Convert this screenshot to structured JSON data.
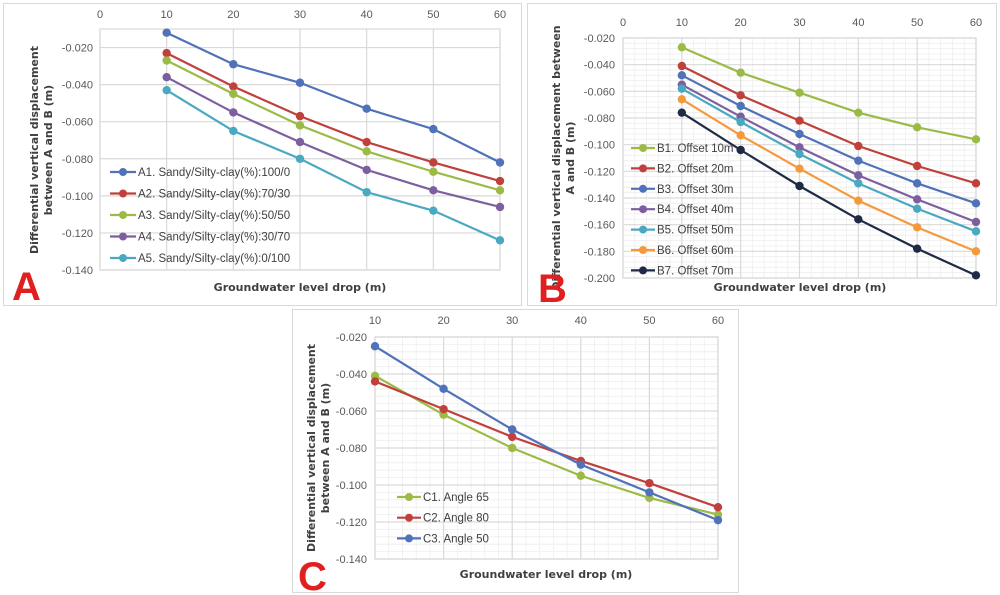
{
  "chart_data": [
    {
      "id": "A",
      "type": "line",
      "panel_label": "A",
      "xlabel": "Groundwater level drop (m)",
      "ylabel": "Differential vertical displacement between A and B (m)",
      "ylabel_lines": [
        "Differential vertical displacement",
        "between A and B (m)"
      ],
      "xlim": [
        0,
        60
      ],
      "ylim": [
        -0.14,
        -0.01
      ],
      "x_ticks": [
        0,
        10,
        20,
        30,
        40,
        50,
        60
      ],
      "x_tick_labels": [
        "0",
        "10",
        "20",
        "30",
        "40",
        "50",
        "60"
      ],
      "y_ticks": [
        -0.02,
        -0.04,
        -0.06,
        -0.08,
        -0.1,
        -0.12,
        -0.14
      ],
      "y_tick_labels": [
        "-0.020",
        "-0.040",
        "-0.060",
        "-0.080",
        "-0.100",
        "-0.120",
        "-0.140"
      ],
      "x_axis_position": "top",
      "grid": true,
      "minor_grid": false,
      "legend_position": "lower-left",
      "x": [
        10,
        20,
        30,
        40,
        50,
        60
      ],
      "series": [
        {
          "name": "A1. Sandy/Silty-clay(%):100/0",
          "color": "#4f72b8",
          "values": [
            -0.012,
            -0.029,
            -0.039,
            -0.053,
            -0.064,
            -0.082
          ]
        },
        {
          "name": "A2. Sandy/Silty-clay(%):70/30",
          "color": "#c0403c",
          "values": [
            -0.023,
            -0.041,
            -0.057,
            -0.071,
            -0.082,
            -0.092
          ]
        },
        {
          "name": "A3. Sandy/Silty-clay(%):50/50",
          "color": "#9bbb46",
          "values": [
            -0.027,
            -0.045,
            -0.062,
            -0.076,
            -0.087,
            -0.097
          ]
        },
        {
          "name": "A4. Sandy/Silty-clay(%):30/70",
          "color": "#7d5fa0",
          "values": [
            -0.036,
            -0.055,
            -0.071,
            -0.086,
            -0.097,
            -0.106
          ]
        },
        {
          "name": "A5. Sandy/Silty-clay(%):0/100",
          "color": "#4aa9c0",
          "values": [
            -0.043,
            -0.065,
            -0.08,
            -0.098,
            -0.108,
            -0.124
          ]
        }
      ]
    },
    {
      "id": "B",
      "type": "line",
      "panel_label": "B",
      "xlabel": "Groundwater level drop (m)",
      "ylabel": "Differential vertical displacement between A and B (m)",
      "ylabel_lines": [
        "Differential vertical displacement between",
        "A and B (m)"
      ],
      "xlim": [
        0,
        60
      ],
      "ylim": [
        -0.2,
        -0.02
      ],
      "x_ticks": [
        0,
        10,
        20,
        30,
        40,
        50,
        60
      ],
      "x_tick_labels": [
        "0",
        "10",
        "20",
        "30",
        "40",
        "50",
        "60"
      ],
      "y_ticks": [
        -0.02,
        -0.04,
        -0.06,
        -0.08,
        -0.1,
        -0.12,
        -0.14,
        -0.16,
        -0.18,
        -0.2
      ],
      "y_tick_labels": [
        "-0.020",
        "-0.040",
        "-0.060",
        "-0.080",
        "-0.100",
        "-0.120",
        "-0.140",
        "-0.160",
        "-0.180",
        "-0.200"
      ],
      "x_axis_position": "top",
      "grid": true,
      "minor_grid": true,
      "legend_position": "lower-left",
      "x": [
        10,
        20,
        30,
        40,
        50,
        60
      ],
      "series": [
        {
          "name": "B1. Offset 10m",
          "color": "#9bbb46",
          "values": [
            -0.027,
            -0.046,
            -0.061,
            -0.076,
            -0.087,
            -0.096
          ]
        },
        {
          "name": "B2. Offset 20m",
          "color": "#c0403c",
          "values": [
            -0.041,
            -0.063,
            -0.082,
            -0.101,
            -0.116,
            -0.129
          ]
        },
        {
          "name": "B3. Offset 30m",
          "color": "#4f72b8",
          "values": [
            -0.048,
            -0.071,
            -0.092,
            -0.112,
            -0.129,
            -0.144
          ]
        },
        {
          "name": "B4. Offset 40m",
          "color": "#7d5fa0",
          "values": [
            -0.055,
            -0.079,
            -0.102,
            -0.123,
            -0.141,
            -0.158
          ]
        },
        {
          "name": "B5. Offset 50m",
          "color": "#4aa9c0",
          "values": [
            -0.058,
            -0.083,
            -0.107,
            -0.129,
            -0.148,
            -0.165
          ]
        },
        {
          "name": "B6. Offset 60m",
          "color": "#f59a3c",
          "values": [
            -0.066,
            -0.093,
            -0.118,
            -0.142,
            -0.162,
            -0.18
          ]
        },
        {
          "name": "B7. Offset 70m",
          "color": "#1f2a44",
          "values": [
            -0.076,
            -0.104,
            -0.131,
            -0.156,
            -0.178,
            -0.198
          ]
        }
      ]
    },
    {
      "id": "C",
      "type": "line",
      "panel_label": "C",
      "xlabel": "Groundwater level drop (m)",
      "ylabel": "Differential vertical displacement between A and B (m)",
      "ylabel_lines": [
        "Differential vertical displacement",
        "between A and B (m)"
      ],
      "xlim": [
        10,
        60
      ],
      "ylim": [
        -0.14,
        -0.02
      ],
      "x_ticks": [
        10,
        20,
        30,
        40,
        50,
        60
      ],
      "x_tick_labels": [
        "10",
        "20",
        "30",
        "40",
        "50",
        "60"
      ],
      "y_ticks": [
        -0.02,
        -0.04,
        -0.06,
        -0.08,
        -0.1,
        -0.12,
        -0.14
      ],
      "y_tick_labels": [
        "-0.020",
        "-0.040",
        "-0.060",
        "-0.080",
        "-0.100",
        "-0.120",
        "-0.140"
      ],
      "x_axis_position": "top",
      "grid": true,
      "minor_grid": true,
      "legend_position": "lower-left",
      "x": [
        10,
        20,
        30,
        40,
        50,
        60
      ],
      "series": [
        {
          "name": "C1. Angle 65",
          "color": "#9bbb46",
          "values": [
            -0.041,
            -0.062,
            -0.08,
            -0.095,
            -0.107,
            -0.116
          ]
        },
        {
          "name": "C2. Angle 80",
          "color": "#c0403c",
          "values": [
            -0.044,
            -0.059,
            -0.074,
            -0.087,
            -0.099,
            -0.112
          ]
        },
        {
          "name": "C3. Angle 50",
          "color": "#4f72b8",
          "values": [
            -0.025,
            -0.048,
            -0.07,
            -0.089,
            -0.104,
            -0.119
          ]
        }
      ]
    }
  ]
}
